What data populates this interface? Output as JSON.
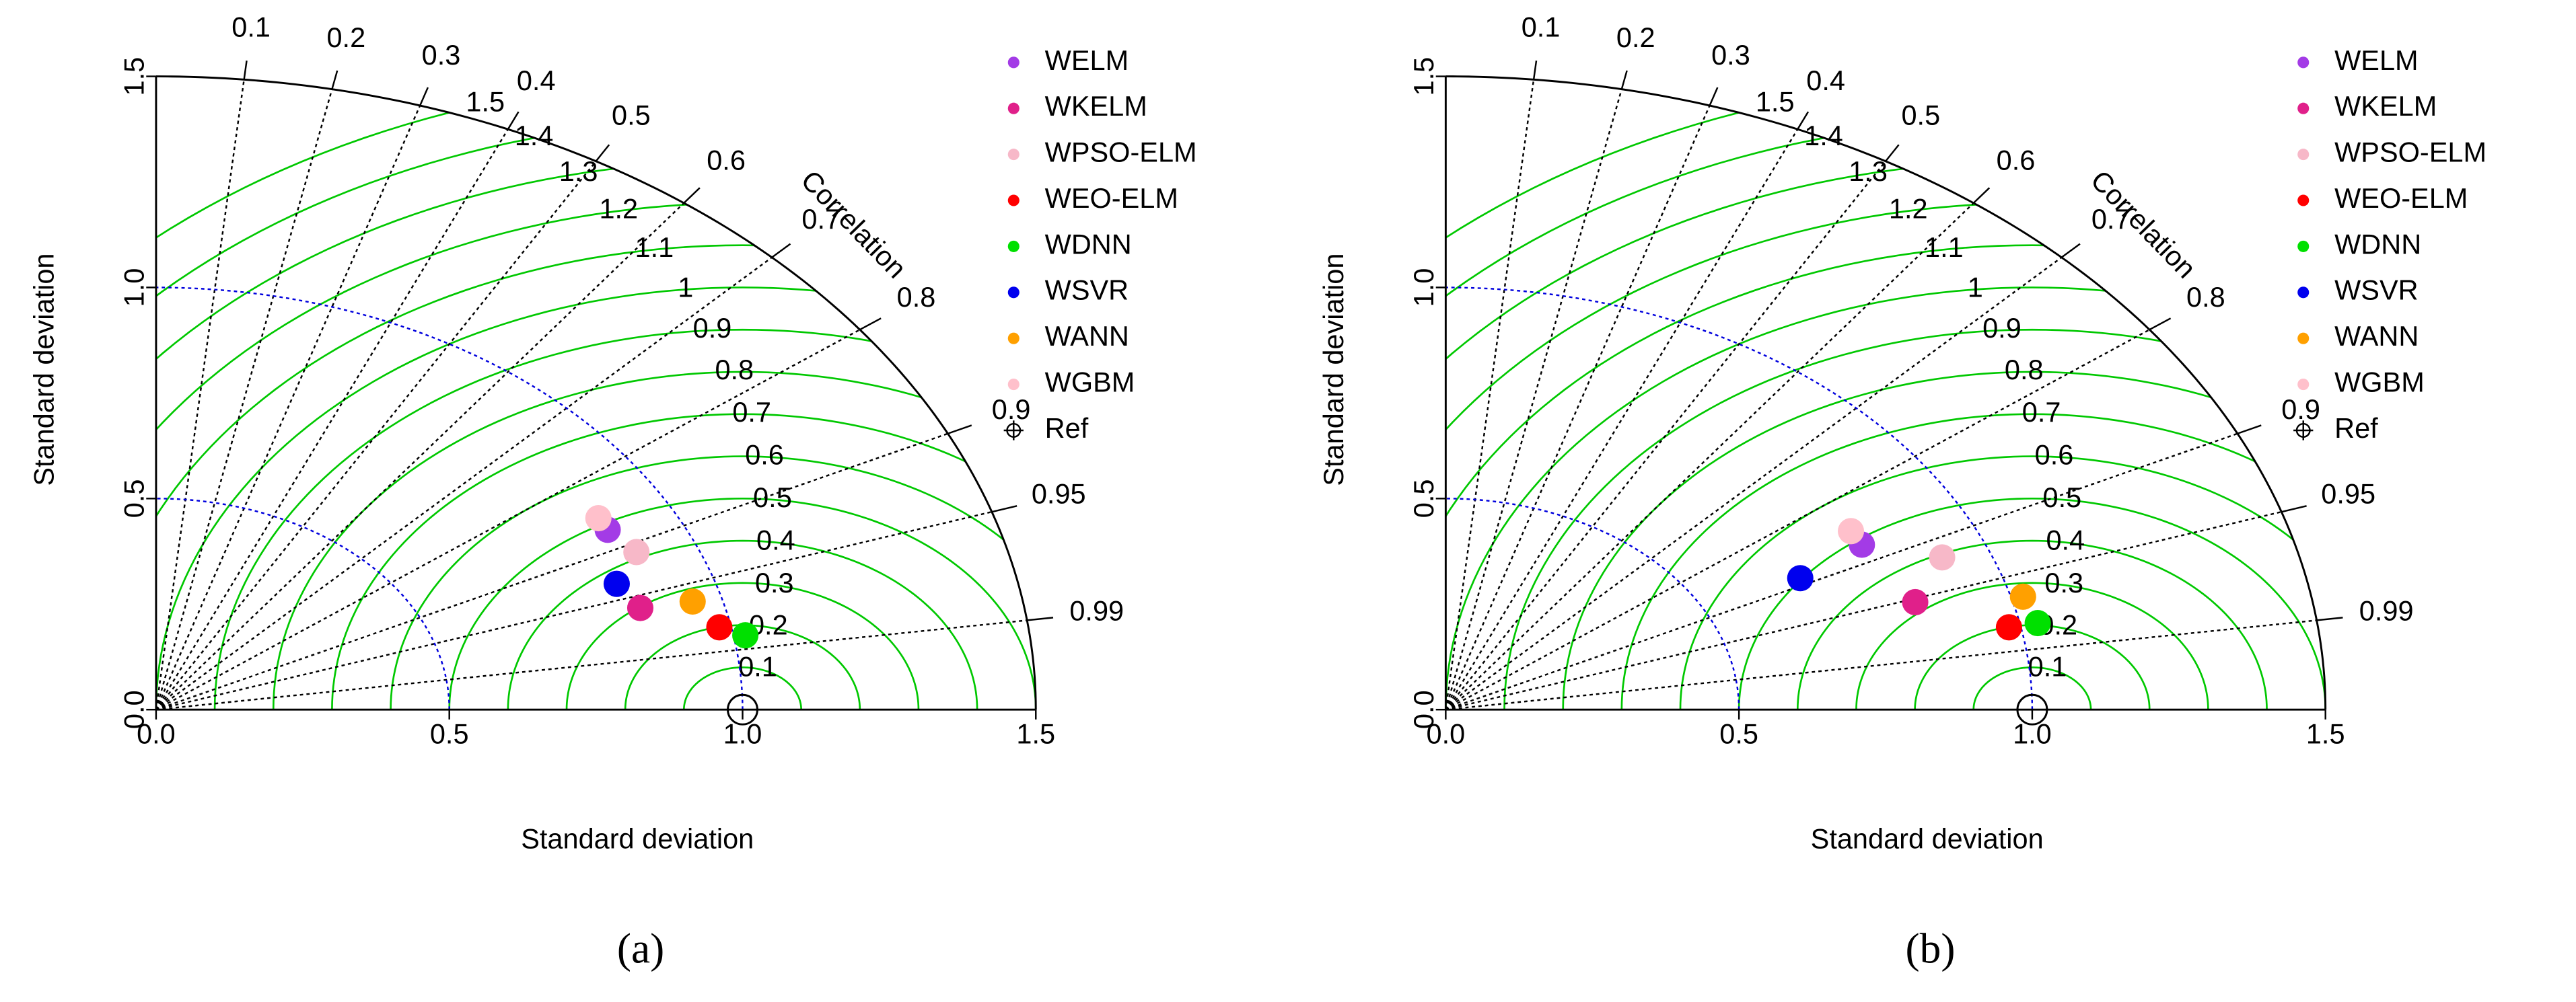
{
  "chart_data": [
    {
      "type": "taylor",
      "caption": "(a)",
      "xlabel": "Standard deviation",
      "ylabel": "Standard deviation",
      "corr_label": "Correlation",
      "sdlim": [
        0,
        1.5
      ],
      "sdticks": [
        {
          "value": 0,
          "label": "0.0"
        },
        {
          "value": 0.5,
          "label": "0.5"
        },
        {
          "value": 1,
          "label": "1.0"
        },
        {
          "value": 1.5,
          "label": "1.5"
        }
      ],
      "corr_ticks": [
        0.1,
        0.2,
        0.3,
        0.4,
        0.5,
        0.6,
        0.7,
        0.8,
        0.9,
        0.95,
        0.99
      ],
      "rmsd_ticks": [
        0.1,
        0.2,
        0.3,
        0.4,
        0.5,
        0.6,
        0.7,
        0.8,
        0.9,
        1,
        1.1,
        1.2,
        1.3,
        1.4,
        1.5
      ],
      "ref": {
        "name": "Ref",
        "sd": 1
      },
      "series": [
        {
          "name": "WELM",
          "color": "#a33be6",
          "sd": 0.88,
          "correlation": 0.875
        },
        {
          "name": "WKELM",
          "color": "#e0208a",
          "sd": 0.86,
          "correlation": 0.96
        },
        {
          "name": "WPSO-ELM",
          "color": "#f7b8c8",
          "sd": 0.9,
          "correlation": 0.91
        },
        {
          "name": "WEO-ELM",
          "color": "#ff0000",
          "sd": 0.98,
          "correlation": 0.98
        },
        {
          "name": "WDNN",
          "color": "#00e000",
          "sd": 1.02,
          "correlation": 0.985
        },
        {
          "name": "WSVR",
          "color": "#0000ee",
          "sd": 0.84,
          "correlation": 0.935
        },
        {
          "name": "WANN",
          "color": "#ffa000",
          "sd": 0.95,
          "correlation": 0.963
        },
        {
          "name": "WGBM",
          "color": "#ffc0cb",
          "sd": 0.88,
          "correlation": 0.857
        }
      ]
    },
    {
      "type": "taylor",
      "caption": "(b)",
      "xlabel": "Standard deviation",
      "ylabel": "Standard deviation",
      "corr_label": "Correlation",
      "sdlim": [
        0,
        1.5
      ],
      "sdticks": [
        {
          "value": 0,
          "label": "0.0"
        },
        {
          "value": 0.5,
          "label": "0.5"
        },
        {
          "value": 1,
          "label": "1.0"
        },
        {
          "value": 1.5,
          "label": "1.5"
        }
      ],
      "corr_ticks": [
        0.1,
        0.2,
        0.3,
        0.4,
        0.5,
        0.6,
        0.7,
        0.8,
        0.9,
        0.95,
        0.99
      ],
      "rmsd_ticks": [
        0.1,
        0.2,
        0.3,
        0.4,
        0.5,
        0.6,
        0.7,
        0.8,
        0.9,
        1,
        1.1,
        1.2,
        1.3,
        1.4,
        1.5
      ],
      "ref": {
        "name": "Ref",
        "sd": 1
      },
      "series": [
        {
          "name": "WELM",
          "color": "#a33be6",
          "sd": 0.81,
          "correlation": 0.876
        },
        {
          "name": "WKELM",
          "color": "#e0208a",
          "sd": 0.84,
          "correlation": 0.953
        },
        {
          "name": "WPSO-ELM",
          "color": "#f7b8c8",
          "sd": 0.92,
          "correlation": 0.92
        },
        {
          "name": "WEO-ELM",
          "color": "#ff0000",
          "sd": 0.98,
          "correlation": 0.98
        },
        {
          "name": "WDNN",
          "color": "#00e000",
          "sd": 1.03,
          "correlation": 0.98
        },
        {
          "name": "WSVR",
          "color": "#0000ee",
          "sd": 0.68,
          "correlation": 0.889
        },
        {
          "name": "WANN",
          "color": "#ffa000",
          "sd": 1.02,
          "correlation": 0.965
        },
        {
          "name": "WGBM",
          "color": "#ffc0cb",
          "sd": 0.81,
          "correlation": 0.853
        }
      ]
    }
  ]
}
